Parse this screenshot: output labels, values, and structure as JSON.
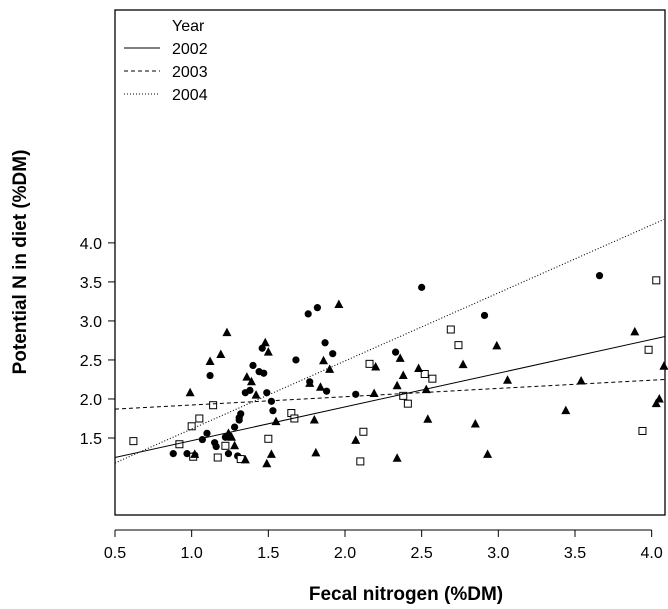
{
  "chart_data": {
    "type": "scatter",
    "title": "",
    "xlabel": "Fecal nitrogen (%DM)",
    "ylabel": "Potential N in diet (%DM)",
    "xlim": [
      0.5,
      4.1
    ],
    "ylim": [
      1.08,
      4.3
    ],
    "x_ticks": [
      0.5,
      1.0,
      1.5,
      2.0,
      2.5,
      3.0,
      3.5,
      4.0
    ],
    "x_tick_labels": [
      "0.5",
      "1.0",
      "1.5",
      "2.0",
      "2.5",
      "3.0",
      "3.5",
      "4.0"
    ],
    "y_ticks": [
      1.5,
      2.0,
      2.5,
      3.0,
      3.5,
      4.0
    ],
    "y_tick_labels": [
      "1.5",
      "2.0",
      "2.5",
      "3.0",
      "3.5",
      "4.0"
    ],
    "grid": false,
    "legend": {
      "title": "Year",
      "placement": "top-left",
      "entries": [
        {
          "label": "2002",
          "line_style": "solid"
        },
        {
          "label": "2003",
          "line_style": "dashed"
        },
        {
          "label": "2004",
          "line_style": "dotted"
        }
      ]
    },
    "series": [
      {
        "marker": "filled-circle",
        "points": [
          [
            0.88,
            1.3
          ],
          [
            0.97,
            1.3
          ],
          [
            1.02,
            1.28
          ],
          [
            1.07,
            1.48
          ],
          [
            1.1,
            1.56
          ],
          [
            1.12,
            2.3
          ],
          [
            1.15,
            1.44
          ],
          [
            1.16,
            1.39
          ],
          [
            1.22,
            1.51
          ],
          [
            1.24,
            1.3
          ],
          [
            1.28,
            1.64
          ],
          [
            1.3,
            1.27
          ],
          [
            1.31,
            1.73
          ],
          [
            1.31,
            1.76
          ],
          [
            1.32,
            1.81
          ],
          [
            1.35,
            2.08
          ],
          [
            1.38,
            2.11
          ],
          [
            1.4,
            2.43
          ],
          [
            1.44,
            2.35
          ],
          [
            1.46,
            2.65
          ],
          [
            1.47,
            2.33
          ],
          [
            1.49,
            2.08
          ],
          [
            1.52,
            1.97
          ],
          [
            1.53,
            1.85
          ],
          [
            1.68,
            2.5
          ],
          [
            1.76,
            3.09
          ],
          [
            1.77,
            2.22
          ],
          [
            1.82,
            3.17
          ],
          [
            1.87,
            2.72
          ],
          [
            1.88,
            2.1
          ],
          [
            1.92,
            2.58
          ],
          [
            2.07,
            2.06
          ],
          [
            2.33,
            2.6
          ],
          [
            2.5,
            3.43
          ],
          [
            2.91,
            3.07
          ],
          [
            3.66,
            3.58
          ]
        ]
      },
      {
        "marker": "open-square",
        "points": [
          [
            0.62,
            1.46
          ],
          [
            0.92,
            1.42
          ],
          [
            1.0,
            1.65
          ],
          [
            1.01,
            1.26
          ],
          [
            1.05,
            1.75
          ],
          [
            1.14,
            1.92
          ],
          [
            1.17,
            1.25
          ],
          [
            1.22,
            1.4
          ],
          [
            1.32,
            1.23
          ],
          [
            1.5,
            1.49
          ],
          [
            1.65,
            1.82
          ],
          [
            1.67,
            1.75
          ],
          [
            2.1,
            1.2
          ],
          [
            2.12,
            1.58
          ],
          [
            2.16,
            2.45
          ],
          [
            2.38,
            2.04
          ],
          [
            2.41,
            1.94
          ],
          [
            2.52,
            2.32
          ],
          [
            2.57,
            2.26
          ],
          [
            2.69,
            2.89
          ],
          [
            2.74,
            2.69
          ],
          [
            3.94,
            1.59
          ],
          [
            3.98,
            2.63
          ],
          [
            4.03,
            3.52
          ]
        ]
      },
      {
        "marker": "filled-triangle",
        "points": [
          [
            0.99,
            2.08
          ],
          [
            1.02,
            1.29
          ],
          [
            1.12,
            2.48
          ],
          [
            1.19,
            2.57
          ],
          [
            1.23,
            2.85
          ],
          [
            1.24,
            1.56
          ],
          [
            1.26,
            1.51
          ],
          [
            1.28,
            1.4
          ],
          [
            1.35,
            1.22
          ],
          [
            1.36,
            2.28
          ],
          [
            1.39,
            2.22
          ],
          [
            1.42,
            2.05
          ],
          [
            1.48,
            2.72
          ],
          [
            1.49,
            1.17
          ],
          [
            1.5,
            2.6
          ],
          [
            1.52,
            1.29
          ],
          [
            1.55,
            1.71
          ],
          [
            1.77,
            2.2
          ],
          [
            1.8,
            1.73
          ],
          [
            1.81,
            1.31
          ],
          [
            1.84,
            2.15
          ],
          [
            1.86,
            2.49
          ],
          [
            1.9,
            2.38
          ],
          [
            1.96,
            3.21
          ],
          [
            2.07,
            1.47
          ],
          [
            2.19,
            2.07
          ],
          [
            2.2,
            2.41
          ],
          [
            2.34,
            1.24
          ],
          [
            2.34,
            2.17
          ],
          [
            2.36,
            2.52
          ],
          [
            2.38,
            2.3
          ],
          [
            2.48,
            2.39
          ],
          [
            2.53,
            2.12
          ],
          [
            2.54,
            1.74
          ],
          [
            2.77,
            2.44
          ],
          [
            2.85,
            1.68
          ],
          [
            2.93,
            1.29
          ],
          [
            2.99,
            2.68
          ],
          [
            3.06,
            2.24
          ],
          [
            3.44,
            1.85
          ],
          [
            3.54,
            2.23
          ],
          [
            3.89,
            2.86
          ],
          [
            4.03,
            1.94
          ],
          [
            4.05,
            2.0
          ],
          [
            4.08,
            2.42
          ]
        ]
      }
    ],
    "regression_lines": [
      {
        "label": "2002",
        "line_style": "solid",
        "x": [
          0.5,
          4.1
        ],
        "y": [
          1.25,
          2.8
        ]
      },
      {
        "label": "2003",
        "line_style": "dashed",
        "x": [
          0.5,
          4.1
        ],
        "y": [
          1.87,
          2.25
        ]
      },
      {
        "label": "2004",
        "line_style": "dotted",
        "x": [
          0.5,
          4.08
        ],
        "y": [
          1.18,
          4.3
        ]
      }
    ]
  }
}
